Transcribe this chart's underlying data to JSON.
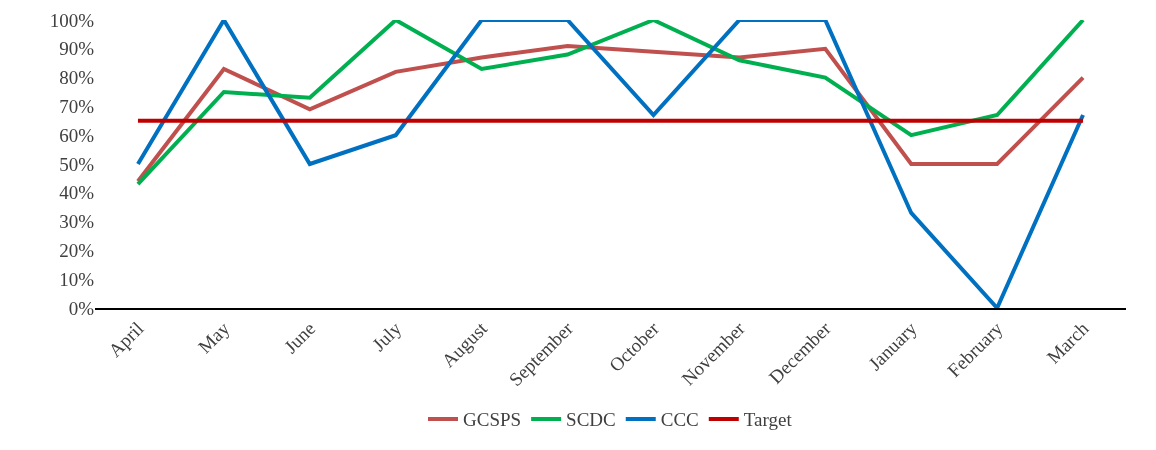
{
  "chart_data": {
    "type": "line",
    "categories": [
      "April",
      "May",
      "June",
      "July",
      "August",
      "September",
      "October",
      "November",
      "December",
      "January",
      "February",
      "March"
    ],
    "series": [
      {
        "name": "GCSPS",
        "color": "#c0504d",
        "values": [
          44,
          83,
          69,
          82,
          87,
          91,
          89,
          87,
          90,
          50,
          50,
          80
        ]
      },
      {
        "name": "SCDC",
        "color": "#00b050",
        "values": [
          43,
          75,
          73,
          100,
          83,
          88,
          100,
          86,
          80,
          60,
          67,
          100
        ]
      },
      {
        "name": "CCC",
        "color": "#0070c0",
        "values": [
          50,
          100,
          50,
          60,
          100,
          100,
          67,
          100,
          100,
          33,
          0,
          67
        ]
      },
      {
        "name": "Target",
        "color": "#c00000",
        "values": [
          65,
          65,
          65,
          65,
          65,
          65,
          65,
          65,
          65,
          65,
          65,
          65
        ]
      }
    ],
    "ylim": [
      0,
      100
    ],
    "yticks": [
      {
        "value": 0,
        "label": "0%"
      },
      {
        "value": 10,
        "label": "10%"
      },
      {
        "value": 20,
        "label": "20%"
      },
      {
        "value": 30,
        "label": "30%"
      },
      {
        "value": 40,
        "label": "40%"
      },
      {
        "value": 50,
        "label": "50%"
      },
      {
        "value": 60,
        "label": "60%"
      },
      {
        "value": 70,
        "label": "70%"
      },
      {
        "value": 80,
        "label": "80%"
      },
      {
        "value": 90,
        "label": "90%"
      },
      {
        "value": 100,
        "label": "100%"
      }
    ],
    "grid": false,
    "legend": "bottom",
    "marker": "none",
    "line_style": "solid"
  }
}
